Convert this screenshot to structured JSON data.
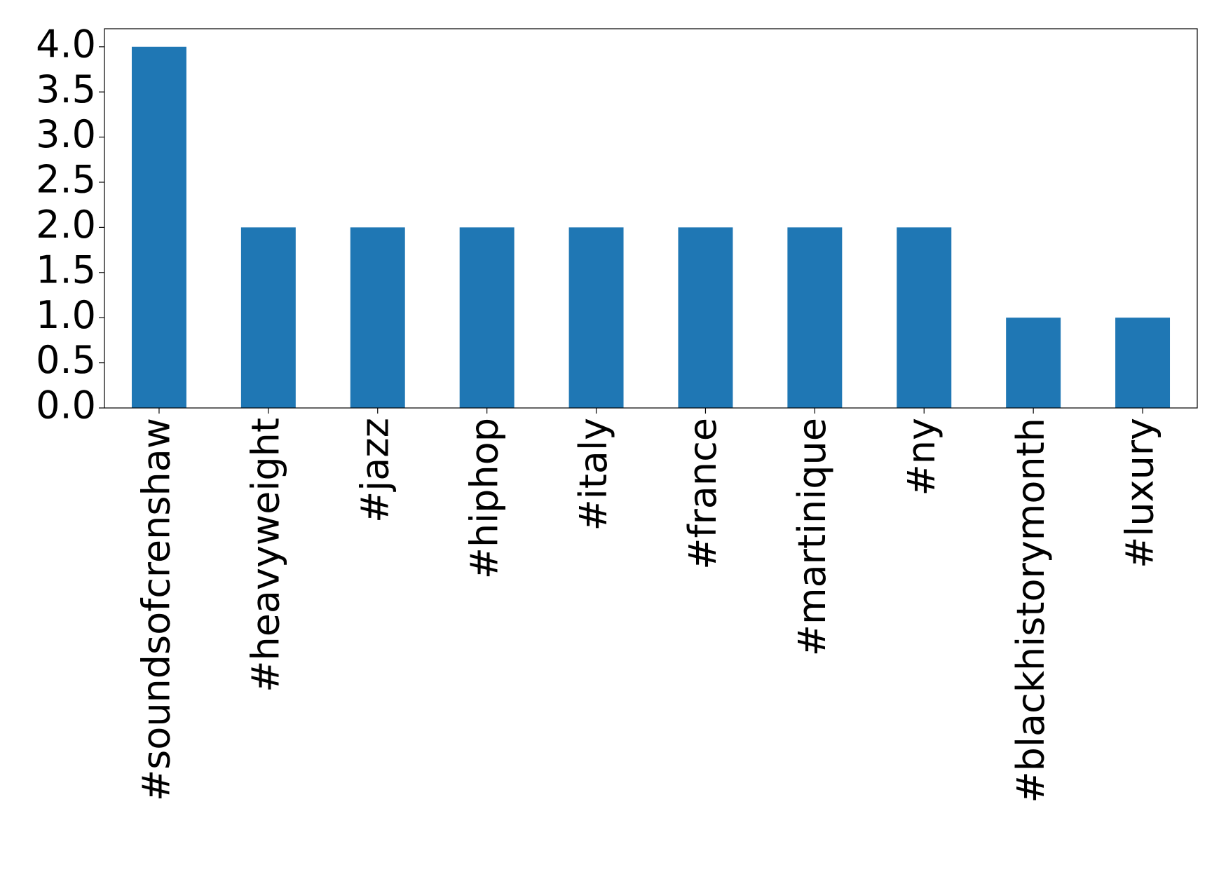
{
  "chart_data": {
    "type": "bar",
    "categories": [
      "#soundsofcrenshaw",
      "#heavyweight",
      "#jazz",
      "#hiphop",
      "#italy",
      "#france",
      "#martinique",
      "#ny",
      "#blackhistorymonth",
      "#luxury"
    ],
    "values": [
      4,
      2,
      2,
      2,
      2,
      2,
      2,
      2,
      1,
      1
    ],
    "color": "#1f77b4",
    "ylim": [
      0,
      4.2
    ],
    "yticks": [
      {
        "value": 0,
        "label": "0.0"
      },
      {
        "value": 0.5,
        "label": "0.5"
      },
      {
        "value": 1,
        "label": "1.0"
      },
      {
        "value": 1.5,
        "label": "1.5"
      },
      {
        "value": 2,
        "label": "2.0"
      },
      {
        "value": 2.5,
        "label": "2.5"
      },
      {
        "value": 3,
        "label": "3.0"
      },
      {
        "value": 3.5,
        "label": "3.5"
      },
      {
        "value": 4,
        "label": "4.0"
      }
    ],
    "grid": false
  }
}
